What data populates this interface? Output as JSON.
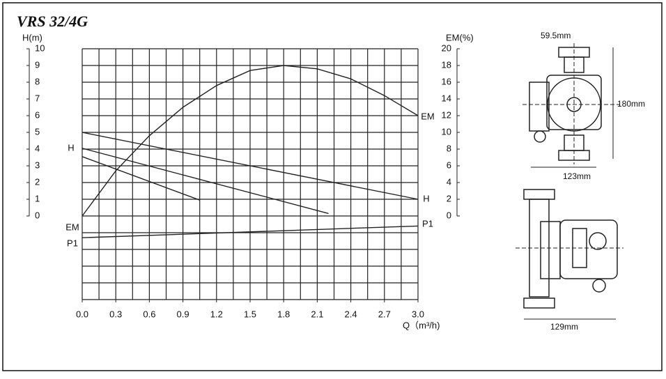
{
  "chart_data": {
    "type": "line",
    "title": "VRS 32/4G",
    "y_label": "H(m)",
    "y2_label": "EM(%)",
    "x_label": "Q（m³/h)",
    "xlim": [
      0,
      3.0
    ],
    "ylim": [
      -5,
      10
    ],
    "y2lim": [
      -10,
      20
    ],
    "xticks": [
      {
        "value": 0,
        "label": "0.0"
      },
      0.3,
      0.6,
      0.9,
      1.2,
      1.5,
      1.8,
      2.1,
      2.4,
      2.7,
      {
        "value": 3,
        "label": "3.0"
      }
    ],
    "yticks": [
      0,
      1,
      2,
      3,
      4,
      5,
      6,
      7,
      8,
      9,
      10
    ],
    "y2ticks": [
      0,
      2,
      4,
      6,
      8,
      10,
      12,
      14,
      16,
      18,
      20
    ],
    "grid": true,
    "series": [
      {
        "color": "#222222",
        "x": [
          0,
          3.0
        ],
        "values": [
          5,
          1
        ]
      },
      {
        "color": "#222222",
        "x": [
          0,
          2.2
        ],
        "values": [
          4.05,
          0.15
        ]
      },
      {
        "color": "#222222",
        "x": [
          0,
          1.05
        ],
        "values": [
          3.55,
          0.95
        ]
      },
      {
        "color": "#222222",
        "axis": "y2",
        "x": [
          0,
          0.3,
          0.6,
          0.9,
          1.2,
          1.5,
          1.8,
          2.1,
          2.4,
          2.7,
          3.0
        ],
        "values": [
          0,
          5.4,
          9.6,
          13,
          15.6,
          17.4,
          18,
          17.6,
          16.4,
          14.4,
          12
        ]
      },
      {
        "color": "#222222",
        "x": [
          0,
          3.0
        ],
        "values": [
          -1.3,
          -0.6
        ]
      }
    ],
    "annotations": [
      "H",
      "H",
      "EM",
      "EM",
      "P1",
      "P1"
    ],
    "drawing_labels": [
      "59.5mm",
      "180mm",
      "123mm",
      "129mm"
    ]
  }
}
